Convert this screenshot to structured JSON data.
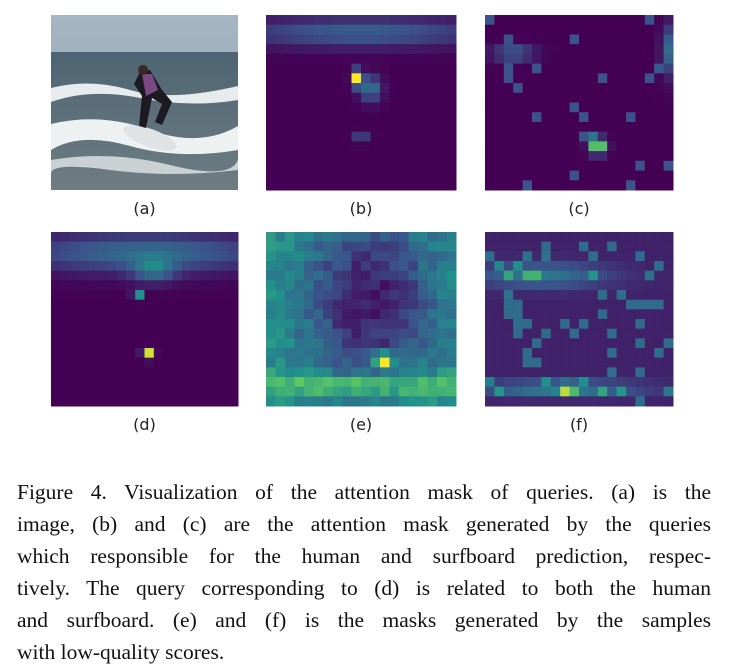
{
  "figure": {
    "panels": [
      {
        "label": "(a)"
      },
      {
        "label": "(b)"
      },
      {
        "label": "(c)"
      },
      {
        "label": "(d)"
      },
      {
        "label": "(e)"
      },
      {
        "label": "(f)"
      }
    ],
    "caption_lines": [
      "Figure 4. Visualization of the attention mask of queries. (a) is the",
      "image, (b) and (c) are the attention mask generated by the queries",
      "which responsible for the human and surfboard prediction, respec-",
      "tively. The query corresponding to (d) is related to both the human",
      "and surfboard. (e) and (f) is the masks generated by the samples",
      "with low-quality scores."
    ]
  }
}
